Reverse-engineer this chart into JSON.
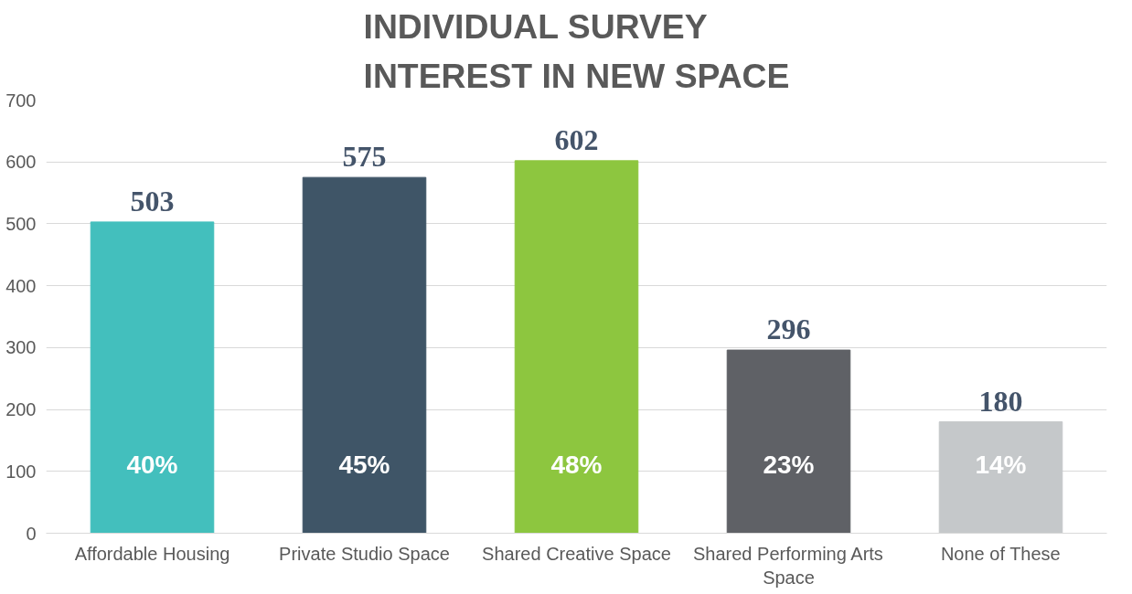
{
  "chart_data": {
    "type": "bar",
    "title": "INDIVIDUAL SURVEY\nINTEREST IN NEW SPACE",
    "categories": [
      "Affordable Housing",
      "Private Studio Space",
      "Shared Creative Space",
      "Shared Performing Arts Space",
      "None of These"
    ],
    "values": [
      503,
      575,
      602,
      296,
      180
    ],
    "colors": [
      "#43bfbd",
      "#3f5567",
      "#8dc63f",
      "#5f6166",
      "#c5c8ca"
    ],
    "ylim": [
      0,
      700
    ],
    "yticks": [
      0,
      100,
      200,
      300,
      400,
      500,
      600,
      700
    ],
    "grid": "y",
    "data_labels": true,
    "annotations": [
      "40%",
      "45%",
      "48%",
      "23%",
      "14%"
    ]
  }
}
